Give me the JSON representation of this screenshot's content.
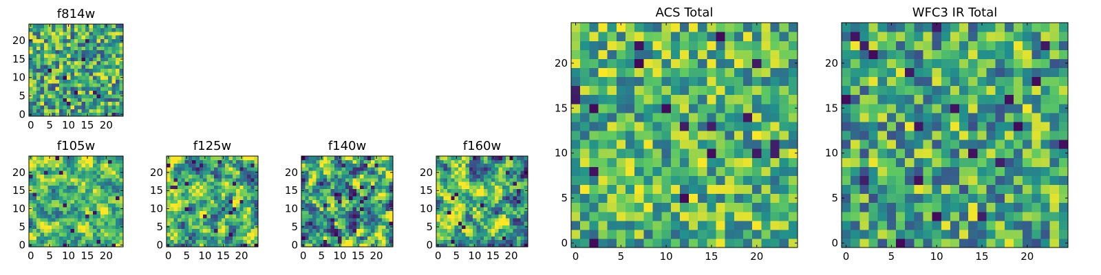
{
  "figure": {
    "background": "#ffffff",
    "colormap": "viridis",
    "colormap_stops": [
      "#440154",
      "#3b528b",
      "#21918c",
      "#5ec962",
      "#fde725"
    ]
  },
  "chart_data": [
    {
      "id": "f814w",
      "type": "heatmap",
      "title": "f814w",
      "grid_size": 25,
      "xlim": [
        0,
        24
      ],
      "ylim": [
        0,
        24
      ],
      "xticks": [
        0,
        5,
        10,
        15,
        20
      ],
      "yticks": [
        0,
        5,
        10,
        15,
        20
      ],
      "tick_labels": {
        "x": [
          "0",
          "5",
          "10",
          "15",
          "20"
        ],
        "y": [
          "0",
          "5",
          "10",
          "15",
          "20"
        ]
      },
      "value_range": [
        0,
        1
      ],
      "pattern": "fine uniform noise",
      "mean": 0.62,
      "spread": 0.22,
      "seed": 11
    },
    {
      "id": "f105w",
      "type": "heatmap",
      "title": "f105w",
      "grid_size": 25,
      "xlim": [
        0,
        24
      ],
      "ylim": [
        0,
        24
      ],
      "xticks": [
        0,
        5,
        10,
        15,
        20
      ],
      "yticks": [
        0,
        5,
        10,
        15,
        20
      ],
      "tick_labels": {
        "x": [
          "0",
          "5",
          "10",
          "15",
          "20"
        ],
        "y": [
          "0",
          "5",
          "10",
          "15",
          "20"
        ]
      },
      "value_range": [
        0,
        1
      ],
      "pattern": "smooth correlated noise",
      "mean": 0.68,
      "spread": 0.18,
      "seed": 23
    },
    {
      "id": "f125w",
      "type": "heatmap",
      "title": "f125w",
      "grid_size": 25,
      "xlim": [
        0,
        24
      ],
      "ylim": [
        0,
        24
      ],
      "xticks": [
        0,
        5,
        10,
        15,
        20
      ],
      "yticks": [
        0,
        5,
        10,
        15,
        20
      ],
      "tick_labels": {
        "x": [
          "0",
          "5",
          "10",
          "15",
          "20"
        ],
        "y": [
          "0",
          "5",
          "10",
          "15",
          "20"
        ]
      },
      "value_range": [
        0,
        1
      ],
      "pattern": "smooth correlated noise",
      "mean": 0.64,
      "spread": 0.22,
      "seed": 37
    },
    {
      "id": "f140w",
      "type": "heatmap",
      "title": "f140w",
      "grid_size": 25,
      "xlim": [
        0,
        24
      ],
      "ylim": [
        0,
        24
      ],
      "xticks": [
        0,
        5,
        10,
        15,
        20
      ],
      "yticks": [
        0,
        5,
        10,
        15,
        20
      ],
      "tick_labels": {
        "x": [
          "0",
          "5",
          "10",
          "15",
          "20"
        ],
        "y": [
          "0",
          "5",
          "10",
          "15",
          "20"
        ]
      },
      "value_range": [
        0,
        1
      ],
      "pattern": "smooth correlated noise",
      "mean": 0.58,
      "spread": 0.26,
      "seed": 41
    },
    {
      "id": "f160w",
      "type": "heatmap",
      "title": "f160w",
      "grid_size": 25,
      "xlim": [
        0,
        24
      ],
      "ylim": [
        0,
        24
      ],
      "xticks": [
        0,
        5,
        10,
        15,
        20
      ],
      "yticks": [
        0,
        5,
        10,
        15,
        20
      ],
      "tick_labels": {
        "x": [
          "0",
          "5",
          "10",
          "15",
          "20"
        ],
        "y": [
          "0",
          "5",
          "10",
          "15",
          "20"
        ]
      },
      "value_range": [
        0,
        1
      ],
      "pattern": "smooth correlated noise",
      "mean": 0.62,
      "spread": 0.25,
      "seed": 53
    },
    {
      "id": "acs_total",
      "type": "heatmap",
      "title": "ACS Total",
      "grid_size": 25,
      "xlim": [
        0,
        24
      ],
      "ylim": [
        0,
        24
      ],
      "xticks": [
        0,
        5,
        10,
        15,
        20
      ],
      "yticks": [
        0,
        5,
        10,
        15,
        20
      ],
      "tick_labels": {
        "x": [
          "0",
          "5",
          "10",
          "15",
          "20"
        ],
        "y": [
          "0",
          "5",
          "10",
          "15",
          "20"
        ]
      },
      "value_range": [
        0,
        1
      ],
      "pattern": "uniform noise",
      "mean": 0.66,
      "spread": 0.2,
      "seed": 67
    },
    {
      "id": "wfc3_ir_total",
      "type": "heatmap",
      "title": "WFC3 IR Total",
      "grid_size": 25,
      "xlim": [
        0,
        24
      ],
      "ylim": [
        0,
        24
      ],
      "xticks": [
        0,
        5,
        10,
        15,
        20
      ],
      "yticks": [
        0,
        5,
        10,
        15,
        20
      ],
      "tick_labels": {
        "x": [
          "0",
          "5",
          "10",
          "15",
          "20"
        ],
        "y": [
          "0",
          "5",
          "10",
          "15",
          "20"
        ]
      },
      "value_range": [
        0,
        1
      ],
      "pattern": "uniform noise",
      "mean": 0.6,
      "spread": 0.21,
      "seed": 79
    }
  ]
}
